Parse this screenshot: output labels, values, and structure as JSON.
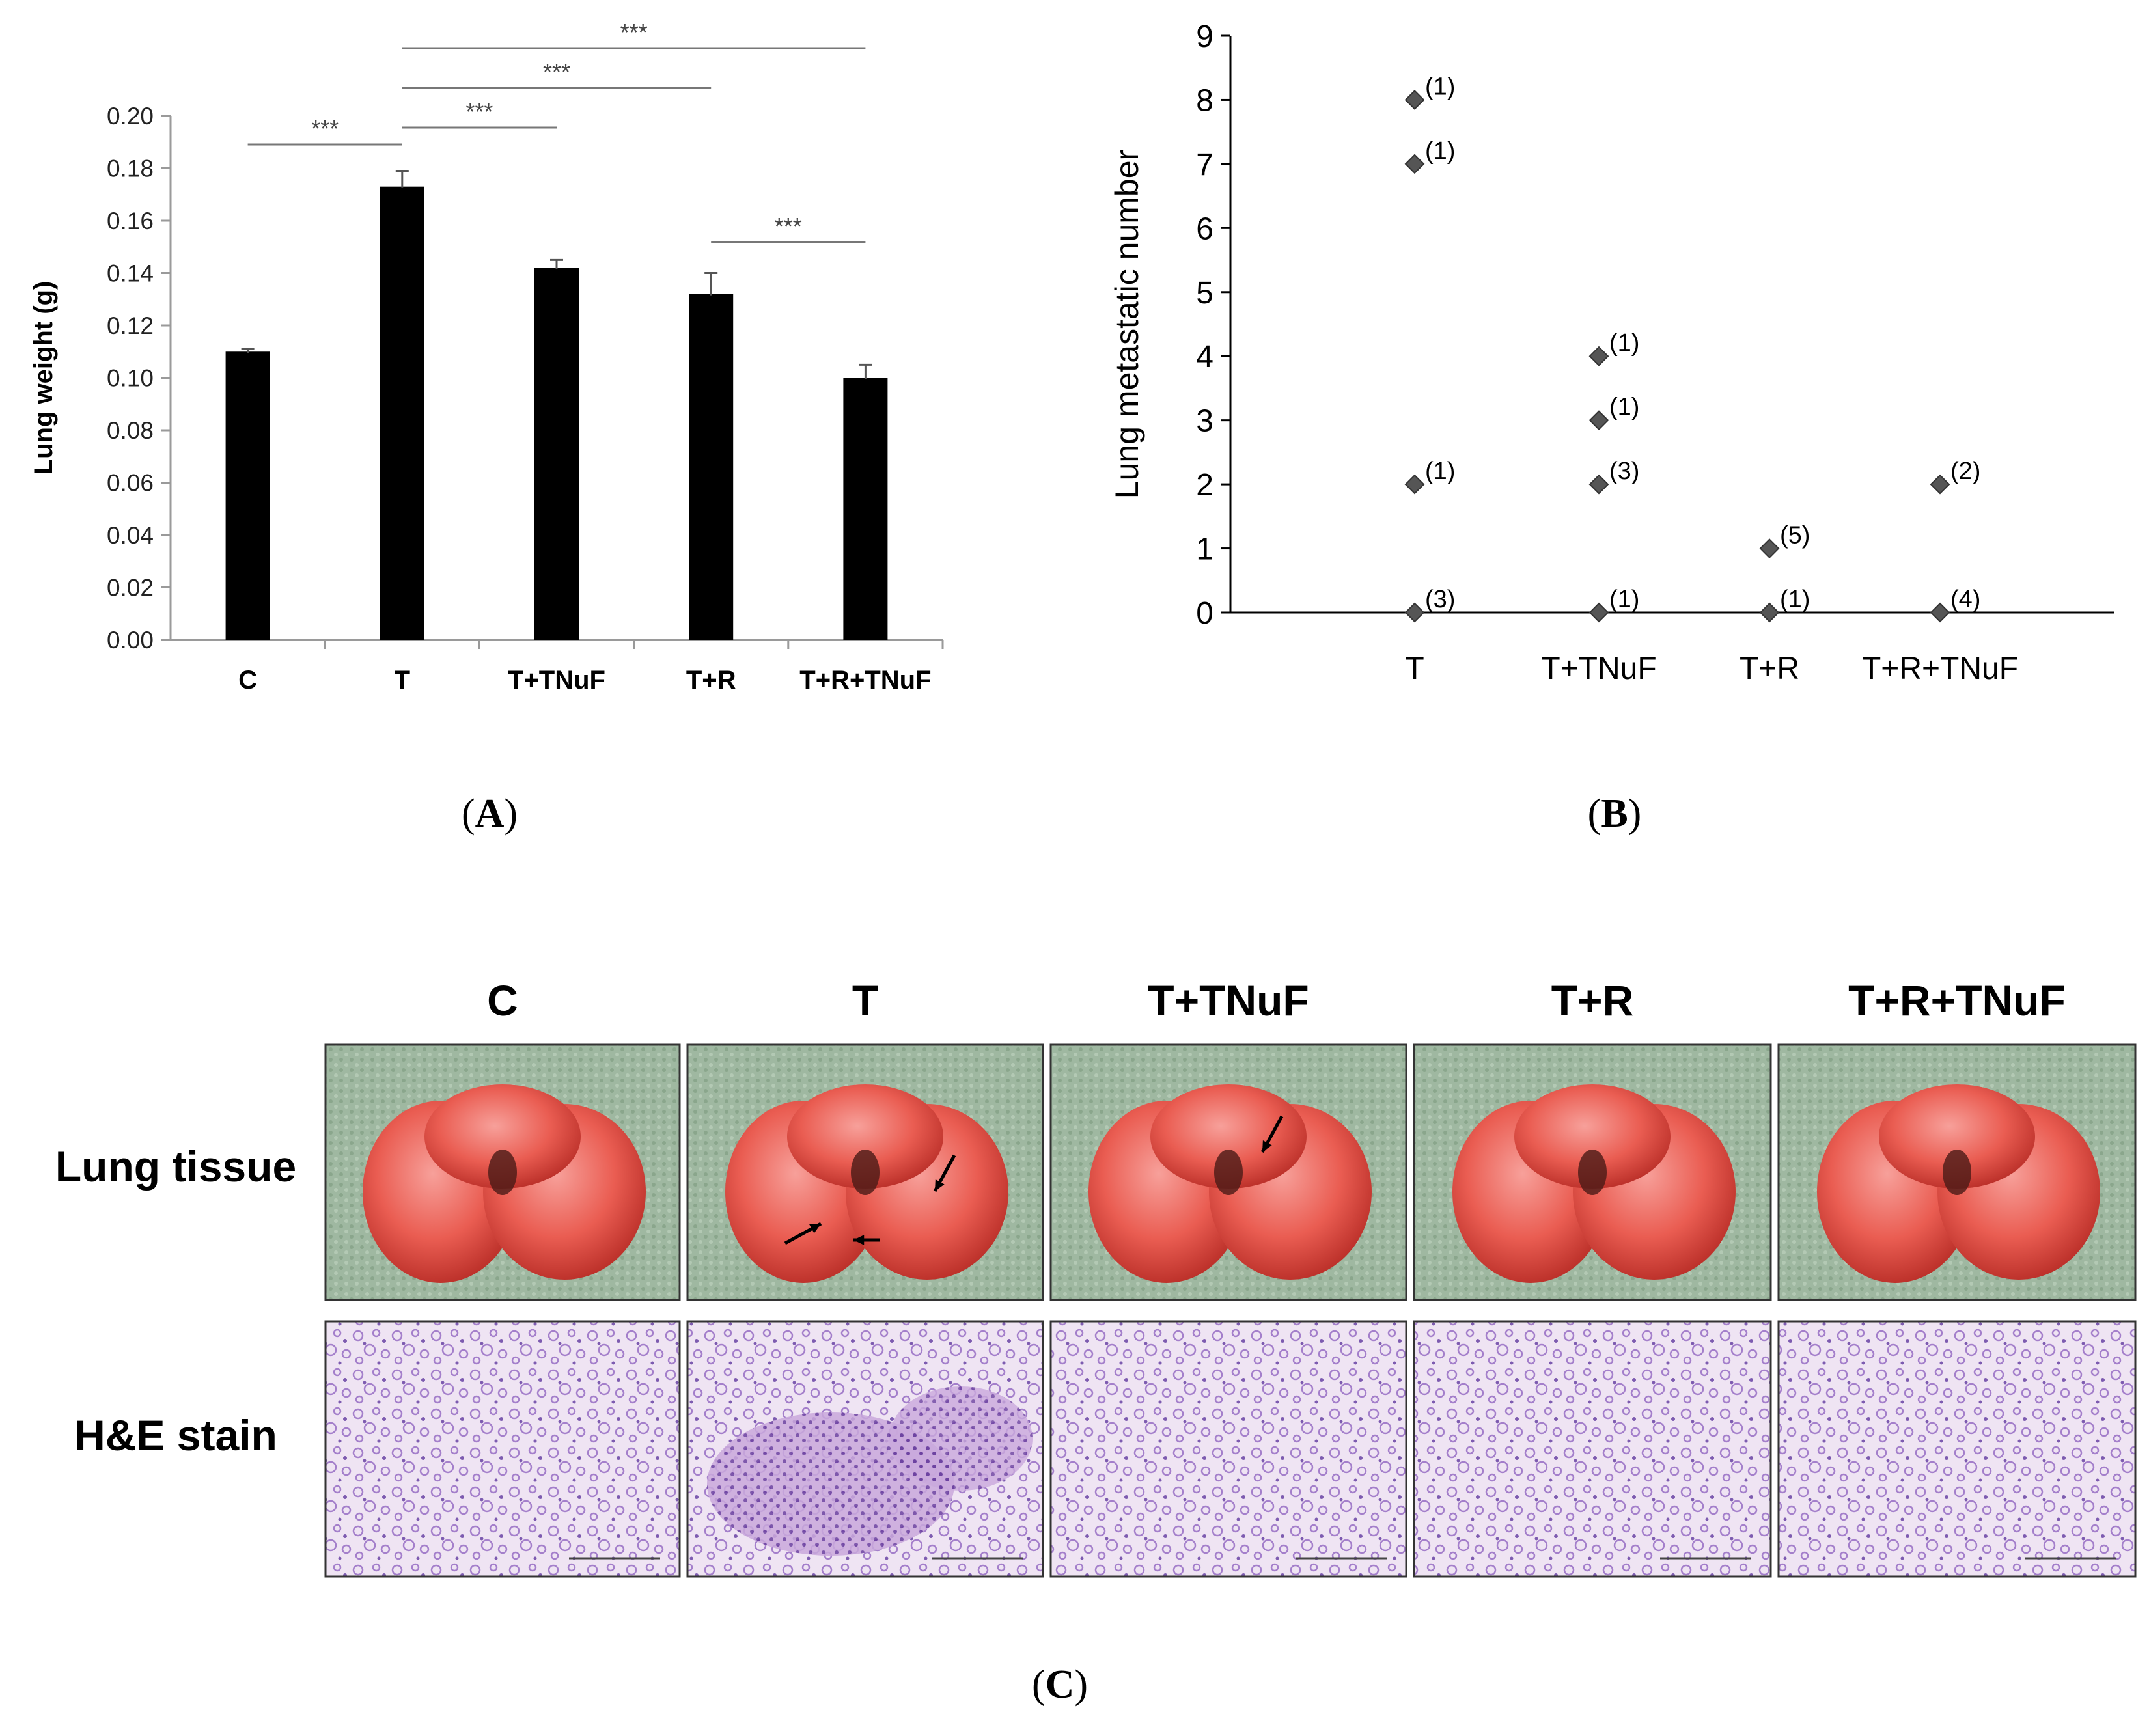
{
  "chart_data": [
    {
      "type": "bar",
      "panel_label": "A",
      "title": "",
      "xlabel": "",
      "ylabel": "Lung weight (g)",
      "ylim": [
        0,
        0.2
      ],
      "yticks": [
        "0.00",
        "0.02",
        "0.04",
        "0.06",
        "0.08",
        "0.10",
        "0.12",
        "0.14",
        "0.16",
        "0.18",
        "0.20"
      ],
      "categories": [
        "C",
        "T",
        "T+TNuF",
        "T+R",
        "T+R+TNuF"
      ],
      "values": [
        0.11,
        0.173,
        0.142,
        0.132,
        0.1
      ],
      "errors": [
        0.001,
        0.006,
        0.003,
        0.008,
        0.005
      ],
      "significance": [
        {
          "from": 0,
          "to": 1,
          "label": "***",
          "level": 0
        },
        {
          "from": 1,
          "to": 2,
          "label": "***",
          "level": 0
        },
        {
          "from": 1,
          "to": 3,
          "label": "***",
          "level": 1
        },
        {
          "from": 1,
          "to": 4,
          "label": "***",
          "level": 2
        },
        {
          "from": 3,
          "to": 4,
          "label": "***",
          "level": 0
        }
      ]
    },
    {
      "type": "scatter",
      "panel_label": "B",
      "title": "",
      "xlabel": "",
      "ylabel": "Lung metastatic number",
      "ylim": [
        0,
        9
      ],
      "yticks": [
        "0",
        "1",
        "2",
        "3",
        "4",
        "5",
        "6",
        "7",
        "8",
        "9"
      ],
      "categories": [
        "T",
        "T+TNuF",
        "T+R",
        "T+R+TNuF"
      ],
      "points": [
        {
          "category": 0,
          "y": 8,
          "label": "(1)"
        },
        {
          "category": 0,
          "y": 7,
          "label": "(1)"
        },
        {
          "category": 0,
          "y": 2,
          "label": "(1)"
        },
        {
          "category": 0,
          "y": 0,
          "label": "(3)"
        },
        {
          "category": 1,
          "y": 4,
          "label": "(1)"
        },
        {
          "category": 1,
          "y": 3,
          "label": "(1)"
        },
        {
          "category": 1,
          "y": 2,
          "label": "(3)"
        },
        {
          "category": 1,
          "y": 0,
          "label": "(1)"
        },
        {
          "category": 2,
          "y": 1,
          "label": "(5)"
        },
        {
          "category": 2,
          "y": 0,
          "label": "(1)"
        },
        {
          "category": 3,
          "y": 2,
          "label": "(2)"
        },
        {
          "category": 3,
          "y": 0,
          "label": "(4)"
        }
      ]
    }
  ],
  "panel_c": {
    "label": "C",
    "groups": [
      "C",
      "T",
      "T+TNuF",
      "T+R",
      "T+R+TNuF"
    ],
    "rows": [
      "Lung tissue",
      "H&E stain"
    ]
  },
  "colors": {
    "bar": "#000000",
    "marker": "#555555",
    "bracket": "#777777",
    "tissue_bg": "#9db69f",
    "lung": "#e8504a",
    "he_bg": "#efe4f3",
    "he_cell": "#9b74c4"
  }
}
